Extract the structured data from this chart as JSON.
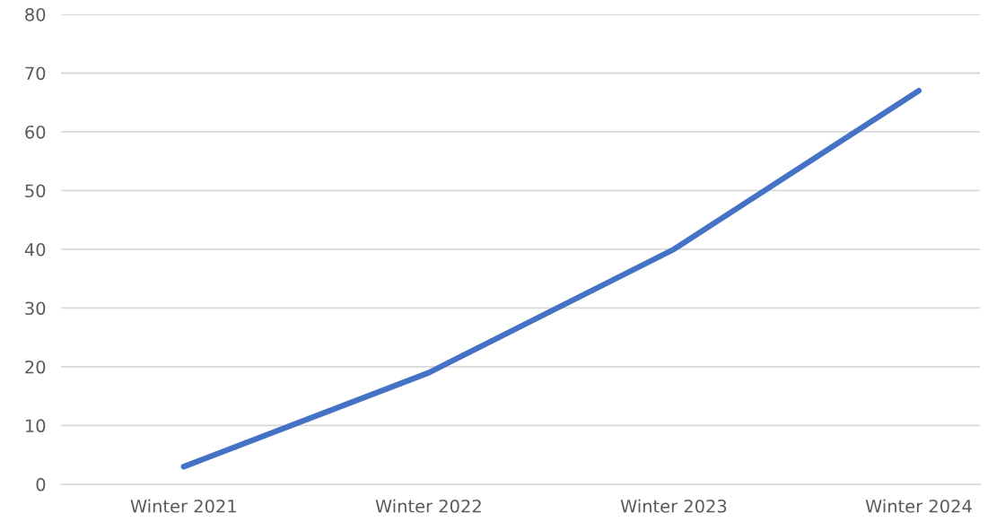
{
  "chart_data": {
    "type": "line",
    "categories": [
      "Winter 2021",
      "Winter 2022",
      "Winter 2023",
      "Winter 2024"
    ],
    "series": [
      {
        "color": "#4472c4",
        "values": [
          3,
          19,
          40,
          67
        ]
      }
    ],
    "ylim": [
      0,
      80
    ],
    "yticks": [
      0,
      10,
      20,
      30,
      40,
      50,
      60,
      70,
      80
    ],
    "grid": "y",
    "marker": "none",
    "line_style": "solid"
  }
}
